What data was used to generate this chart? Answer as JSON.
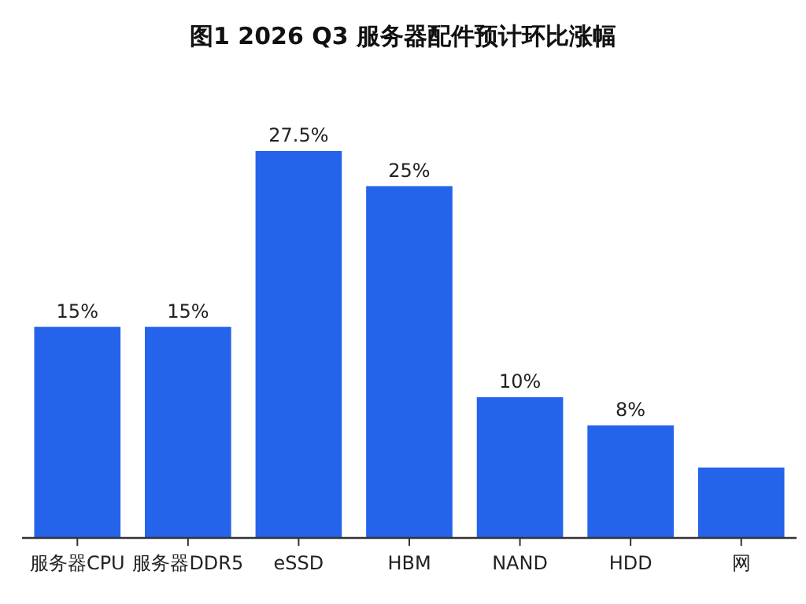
{
  "chart_data": {
    "type": "bar",
    "title": "图1  2026 Q3 服务器配件预计环比涨幅",
    "categories": [
      "服务器CPU",
      "服务器DDR5",
      "eSSD",
      "HBM",
      "NAND",
      "HDD",
      "网"
    ],
    "values": [
      15,
      15,
      27.5,
      25,
      10,
      8,
      5
    ],
    "value_labels": [
      "15%",
      "15%",
      "27.5%",
      "25%",
      "10%",
      "8%",
      null
    ],
    "color": "#2563eb"
  }
}
